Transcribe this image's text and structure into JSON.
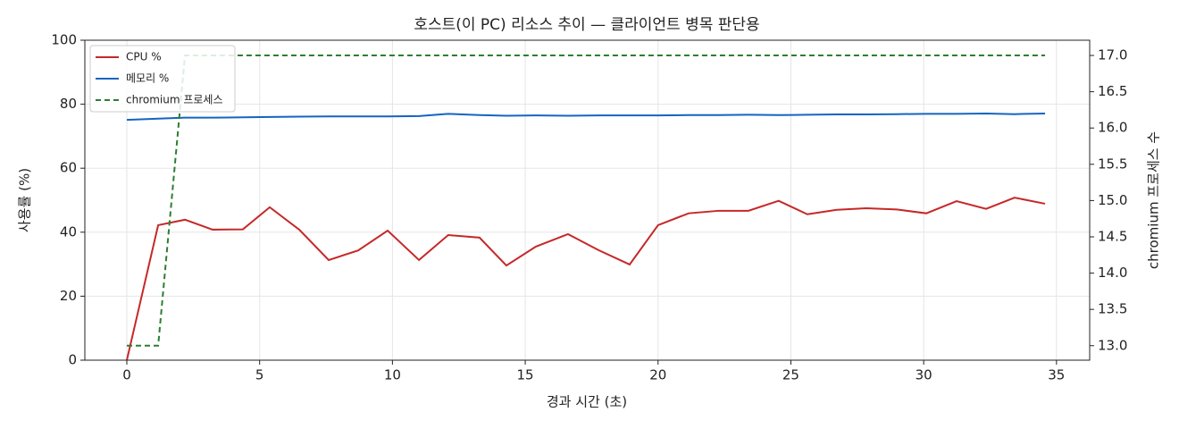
{
  "chart_data": {
    "type": "line",
    "title": "호스트(이 PC) 리소스 추이 — 클라이언트 병목 판단용",
    "x_label": "경과 시간 (초)",
    "y_label": "사용률 (%)",
    "y2_label": "chromium 프로세스 수",
    "x": [
      0,
      1.18,
      2.19,
      3.23,
      4.37,
      5.38,
      6.49,
      7.6,
      8.71,
      9.82,
      11.0,
      12.1,
      13.28,
      14.29,
      15.4,
      16.61,
      17.76,
      18.93,
      20.0,
      21.15,
      22.29,
      23.4,
      24.54,
      25.62,
      26.73,
      27.84,
      28.99,
      30.1,
      31.24,
      32.35,
      33.42,
      34.57
    ],
    "series": [
      {
        "name": "CPU %",
        "color": "#c62828",
        "dash": false,
        "values": [
          0,
          42.2,
          43.9,
          40.8,
          40.9,
          47.8,
          40.8,
          31.3,
          34.3,
          40.5,
          31.3,
          39.1,
          38.3,
          29.6,
          35.5,
          39.4,
          34.4,
          29.9,
          42.2,
          45.9,
          46.7,
          46.7,
          49.8,
          45.6,
          47.0,
          47.5,
          47.1,
          45.9,
          49.7,
          47.3,
          50.8,
          48.9
        ]
      },
      {
        "name": "메모리 %",
        "color": "#1565c0",
        "dash": false,
        "values": [
          75.1,
          75.5,
          75.8,
          75.8,
          75.9,
          76.0,
          76.1,
          76.2,
          76.2,
          76.2,
          76.3,
          77.0,
          76.6,
          76.4,
          76.5,
          76.4,
          76.5,
          76.5,
          76.5,
          76.6,
          76.6,
          76.7,
          76.6,
          76.7,
          76.8,
          76.8,
          76.9,
          77.0,
          77.0,
          77.1,
          76.9,
          77.1
        ]
      },
      {
        "name": "chromium 프로세스",
        "color": "#2e7d32",
        "dash": true,
        "axis": "y2",
        "values": [
          13,
          13,
          17,
          17,
          17,
          17,
          17,
          17,
          17,
          17,
          17,
          17,
          17,
          17,
          17,
          17,
          17,
          17,
          17,
          17,
          17,
          17,
          17,
          17,
          17,
          17,
          17,
          17,
          17,
          17,
          17,
          17
        ]
      }
    ],
    "xlim": [
      -1.58,
      36.25
    ],
    "xticks": [
      0,
      5,
      10,
      15,
      20,
      25,
      30,
      35
    ],
    "ylim": [
      0,
      100
    ],
    "yticks": [
      0,
      20,
      40,
      60,
      80,
      100
    ],
    "y2lim": [
      12.8,
      17.21
    ],
    "y2ticks": [
      {
        "value": 13,
        "label": "13.0"
      },
      {
        "value": 13.5,
        "label": "13.5"
      },
      {
        "value": 14,
        "label": "14.0"
      },
      {
        "value": 14.5,
        "label": "14.5"
      },
      {
        "value": 15,
        "label": "15.0"
      },
      {
        "value": 15.5,
        "label": "15.5"
      },
      {
        "value": 16,
        "label": "16.0"
      },
      {
        "value": 16.5,
        "label": "16.5"
      },
      {
        "value": 17,
        "label": "17.0"
      }
    ],
    "grid": true,
    "legend": "upper-left"
  }
}
